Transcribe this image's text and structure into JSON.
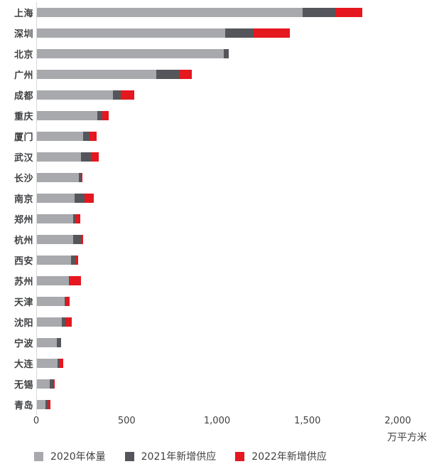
{
  "chart_data": {
    "type": "bar",
    "orientation": "horizontal",
    "stacked": true,
    "grid": false,
    "legend_position": "bottom",
    "unit_label": "万平方米",
    "axis_color": "#d8d8da",
    "text_color": "#3f4042",
    "categories": [
      "上海",
      "深圳",
      "北京",
      "广州",
      "成都",
      "重庆",
      "厦门",
      "武汉",
      "长沙",
      "南京",
      "郑州",
      "杭州",
      "西安",
      "苏州",
      "天津",
      "沈阳",
      "宁波",
      "大连",
      "无锡",
      "青岛"
    ],
    "series": [
      {
        "name": "2020年体量",
        "color": "#a8a9ac",
        "values": [
          1470,
          1040,
          1035,
          660,
          420,
          335,
          255,
          245,
          230,
          210,
          200,
          200,
          190,
          175,
          155,
          138,
          110,
          114,
          70,
          48
        ]
      },
      {
        "name": "2021年新增供应",
        "color": "#54565b",
        "values": [
          180,
          160,
          25,
          125,
          45,
          25,
          35,
          55,
          12,
          55,
          15,
          42,
          27,
          5,
          5,
          22,
          23,
          11,
          19,
          16
        ]
      },
      {
        "name": "2022年新增供应",
        "color": "#e5171f",
        "values": [
          150,
          200,
          0,
          70,
          75,
          35,
          40,
          40,
          10,
          50,
          25,
          12,
          12,
          65,
          20,
          32,
          0,
          19,
          10,
          12
        ]
      }
    ],
    "x_axis": {
      "ticks": [
        "0",
        "500",
        "1,000",
        "1,500",
        "2,000"
      ],
      "tick_values": [
        0,
        500,
        1000,
        1500,
        2000
      ],
      "min": 0,
      "max": 2000
    }
  }
}
